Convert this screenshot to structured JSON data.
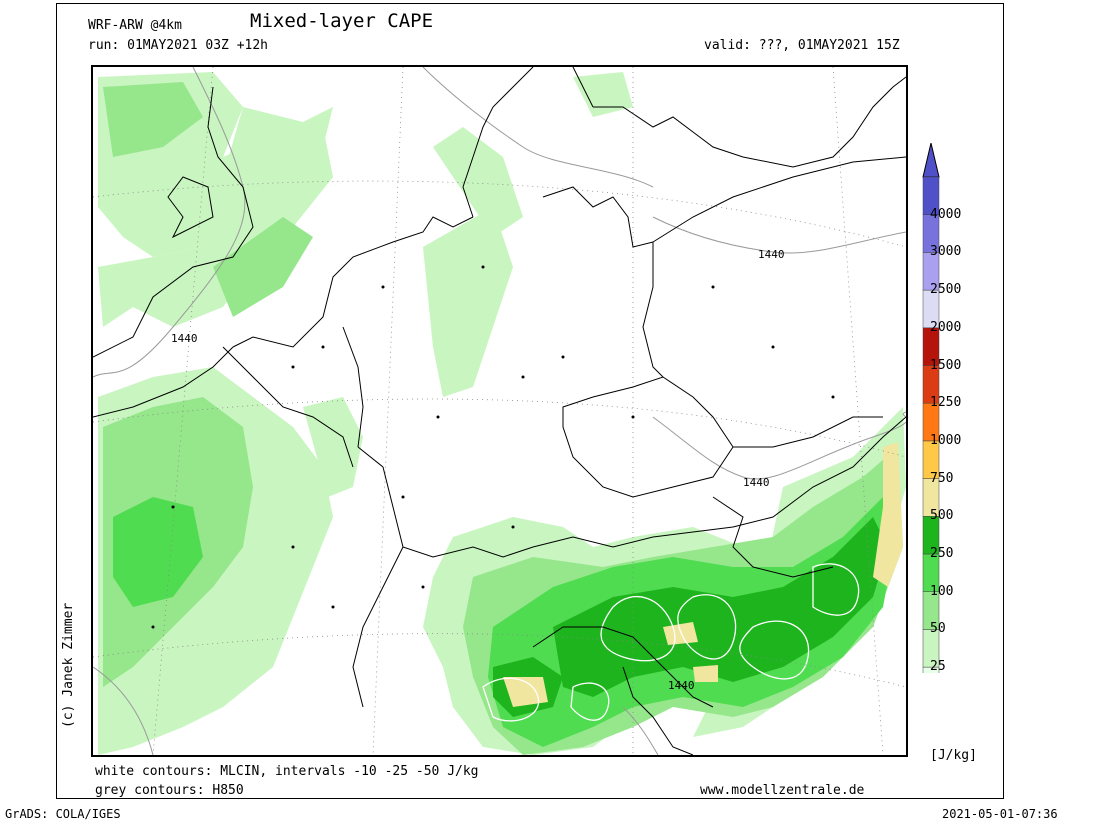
{
  "header": {
    "model": "WRF-ARW @4km",
    "title": "Mixed-layer CAPE",
    "run": "run: 01MAY2021 03Z +12h",
    "valid": "valid: ???, 01MAY2021 15Z"
  },
  "footer": {
    "white_contours": "white contours: MLCIN, intervals -10 -25 -50 J/kg",
    "grey_contours": "grey contours: H850",
    "website": "www.modellzentrale.de"
  },
  "credit": "(c) Janek Zimmer",
  "bottom": {
    "software": "GrADS: COLA/IGES",
    "timestamp": "2021-05-01-07:36"
  },
  "map": {
    "contour_labels": [
      "1440",
      "1440",
      "1440",
      "1440"
    ]
  },
  "colorbar": {
    "unit": "[J/kg]",
    "levels": [
      "4000",
      "3000",
      "2500",
      "2000",
      "1500",
      "1250",
      "1000",
      "750",
      "500",
      "250",
      "100",
      "50",
      "25"
    ],
    "colors": [
      "#e6ffe6",
      "#c8f5c0",
      "#96e68c",
      "#50dc50",
      "#1eb41e",
      "#f0e6a0",
      "#ffc846",
      "#ff7814",
      "#dc3c14",
      "#b4140a",
      "#dcdcf5",
      "#aaa0f0",
      "#7873dc",
      "#5050c8"
    ],
    "top_triangle_color": "#5050c8",
    "bottom_triangle_color": "#ffffff"
  },
  "colors": {
    "border": "#000000",
    "h850_contour": "#9a9a9a",
    "cape_light": "#c8f5c0",
    "cape_mid": "#96e68c",
    "cape_high": "#50dc50",
    "cape_dark": "#1eb41e",
    "cape_pale_yellow": "#f0e6a0"
  }
}
